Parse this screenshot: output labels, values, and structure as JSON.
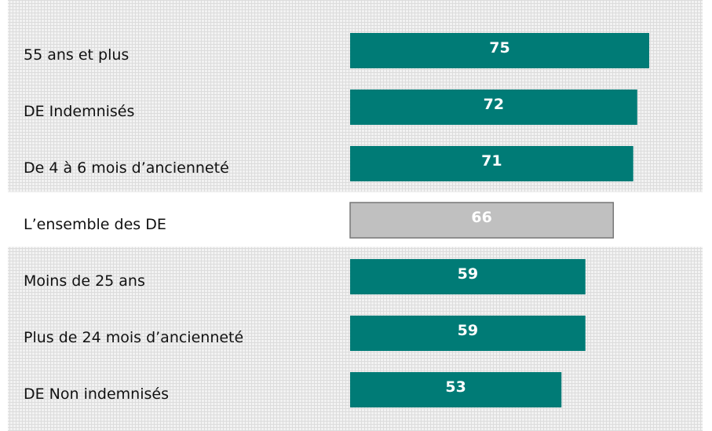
{
  "chart_data": {
    "type": "bar",
    "orientation": "horizontal",
    "categories": [
      "55 ans et plus",
      "DE Indemnisés",
      "De 4 à 6 mois d’ancienneté",
      "L’ensemble des DE",
      "Moins de 25 ans",
      "Plus de 24 mois d’ancienneté",
      "DE Non indemnisés"
    ],
    "values": [
      75,
      72,
      71,
      66,
      59,
      59,
      53
    ],
    "colors": [
      "#007b76",
      "#007b76",
      "#007b76",
      "#c0c0c0",
      "#007b76",
      "#007b76",
      "#007b76"
    ]
  }
}
